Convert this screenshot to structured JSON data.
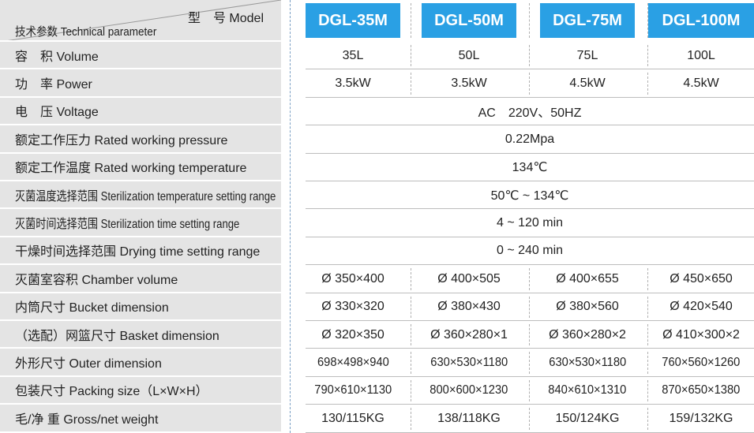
{
  "header": {
    "model_label": "型　号 Model",
    "param_label": "技术参数 Technical parameter",
    "models": [
      "DGL-35M",
      "DGL-50M",
      "DGL-75M",
      "DGL-100M"
    ]
  },
  "rows": [
    {
      "label": "容　积 Volume",
      "values": [
        "35L",
        "50L",
        "75L",
        "100L"
      ]
    },
    {
      "label": "功　率 Power",
      "values": [
        "3.5kW",
        "3.5kW",
        "4.5kW",
        "4.5kW"
      ]
    },
    {
      "label": "电　压 Voltage",
      "span": "AC　220V、50HZ"
    },
    {
      "label": "额定工作压力 Rated working pressure",
      "span": "0.22Mpa"
    },
    {
      "label": "额定工作温度 Rated working temperature",
      "span": "134℃"
    },
    {
      "label": "灭菌温度选择范围 Sterilization temperature setting range",
      "span": "50℃ ~ 134℃",
      "narrow": true
    },
    {
      "label": "灭菌时间选择范围 Sterilization time setting range",
      "span": "4 ~ 120 min",
      "narrow": true
    },
    {
      "label": "干燥时间选择范围 Drying time setting range",
      "span": "0 ~ 240 min"
    },
    {
      "label": "灭菌室容积 Chamber volume",
      "values": [
        "Ø 350×400",
        "Ø 400×505",
        "Ø 400×655",
        "Ø 450×650"
      ]
    },
    {
      "label": "内筒尺寸 Bucket dimension",
      "values": [
        "Ø 330×320",
        "Ø 380×430",
        "Ø 380×560",
        "Ø 420×540"
      ]
    },
    {
      "label": "（选配）网篮尺寸 Basket dimension",
      "values": [
        "Ø 320×350",
        "Ø 360×280×1",
        "Ø 360×280×2",
        "Ø 410×300×2"
      ]
    },
    {
      "label": "外形尺寸 Outer dimension",
      "values": [
        "698×498×940",
        "630×530×1180",
        "630×530×1180",
        "760×560×1260"
      ],
      "squeeze": true
    },
    {
      "label": "包装尺寸 Packing size（L×W×H）",
      "values": [
        "790×610×1130",
        "800×600×1230",
        "840×610×1310",
        "870×650×1380"
      ],
      "squeeze": true
    },
    {
      "label": "毛/净 重 Gross/net weight",
      "values": [
        "130/115KG",
        "138/118KG",
        "150/124KG",
        "159/132KG"
      ]
    }
  ]
}
